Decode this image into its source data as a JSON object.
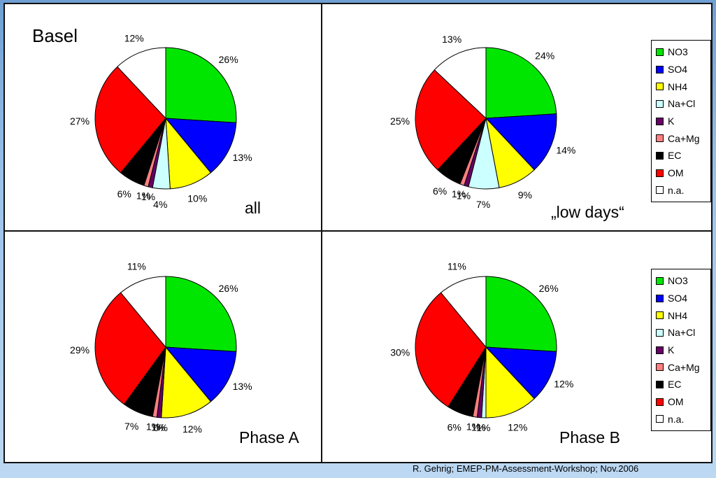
{
  "footer": "R. Gehrig; EMEP-PM-Assessment-Workshop; Nov.2006",
  "legend": [
    {
      "label": "NO3",
      "color": "#00e600"
    },
    {
      "label": "SO4",
      "color": "#0000ff"
    },
    {
      "label": "NH4",
      "color": "#ffff00"
    },
    {
      "label": "Na+Cl",
      "color": "#ccffff"
    },
    {
      "label": "K",
      "color": "#660066"
    },
    {
      "label": "Ca+Mg",
      "color": "#ff8080"
    },
    {
      "label": "EC",
      "color": "#000000"
    },
    {
      "label": "OM",
      "color": "#ff0000"
    },
    {
      "label": "n.a.",
      "color": "#ffffff"
    }
  ],
  "chart_data": [
    {
      "type": "pie",
      "title": "Basel",
      "subtitle": "all",
      "categories": [
        "NO3",
        "SO4",
        "NH4",
        "Na+Cl",
        "K",
        "Ca+Mg",
        "EC",
        "OM",
        "n.a."
      ],
      "values": [
        26,
        13,
        10,
        4,
        1,
        1,
        6,
        27,
        12
      ],
      "labels": [
        "26%",
        "13%",
        "10%",
        "4%",
        "1%",
        "1%",
        "6%",
        "27%",
        "12%"
      ]
    },
    {
      "type": "pie",
      "title": "",
      "subtitle": "„low days“",
      "categories": [
        "NO3",
        "SO4",
        "NH4",
        "Na+Cl",
        "K",
        "Ca+Mg",
        "EC",
        "OM",
        "n.a."
      ],
      "values": [
        24,
        14,
        9,
        7,
        1,
        1,
        6,
        25,
        13
      ],
      "labels": [
        "24%",
        "14%",
        "9%",
        "7%",
        "1%",
        "1%",
        "6%",
        "25%",
        "13%"
      ]
    },
    {
      "type": "pie",
      "title": "",
      "subtitle": "Phase A",
      "categories": [
        "NO3",
        "SO4",
        "NH4",
        "Na+Cl",
        "K",
        "Ca+Mg",
        "EC",
        "OM",
        "n.a."
      ],
      "values": [
        26,
        13,
        12,
        0,
        1,
        1,
        7,
        29,
        11
      ],
      "labels": [
        "26%",
        "13%",
        "12%",
        "0%",
        "1%",
        "1%",
        "7%",
        "29%",
        "11%"
      ]
    },
    {
      "type": "pie",
      "title": "",
      "subtitle": "Phase B",
      "categories": [
        "NO3",
        "SO4",
        "NH4",
        "Na+Cl",
        "K",
        "Ca+Mg",
        "EC",
        "OM",
        "n.a."
      ],
      "values": [
        26,
        12,
        12,
        1,
        1,
        1,
        6,
        30,
        11
      ],
      "labels": [
        "26%",
        "12%",
        "12%",
        "1%",
        "1%",
        "1%",
        "6%",
        "30%",
        "11%"
      ]
    }
  ]
}
